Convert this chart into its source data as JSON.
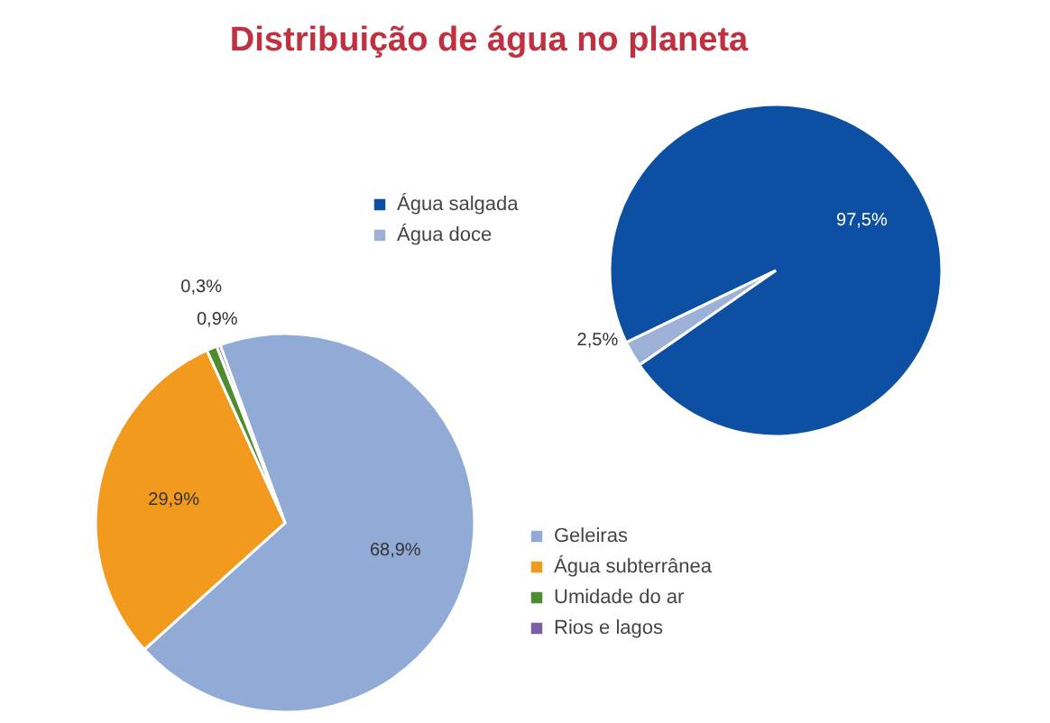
{
  "chart_data": [
    {
      "type": "pie",
      "title": "Distribuição de água no planeta",
      "categories": [
        "Água salgada",
        "Água doce"
      ],
      "values": [
        97.5,
        2.5
      ],
      "colors": [
        "#0d4fa3",
        "#9cb0d8"
      ],
      "value_labels": [
        "97,5%",
        "2,5%"
      ],
      "legend": "left"
    },
    {
      "type": "pie",
      "categories": [
        "Geleiras",
        "Água subterrânea",
        "Umidade do ar",
        "Rios e lagos"
      ],
      "values": [
        68.9,
        29.9,
        0.9,
        0.3
      ],
      "colors": [
        "#92aad6",
        "#f29a1e",
        "#4f8b2f",
        "#7a5fa8"
      ],
      "value_labels": [
        "68,9%",
        "29,9%",
        "0,9%",
        "0,3%"
      ],
      "legend": "right"
    }
  ]
}
